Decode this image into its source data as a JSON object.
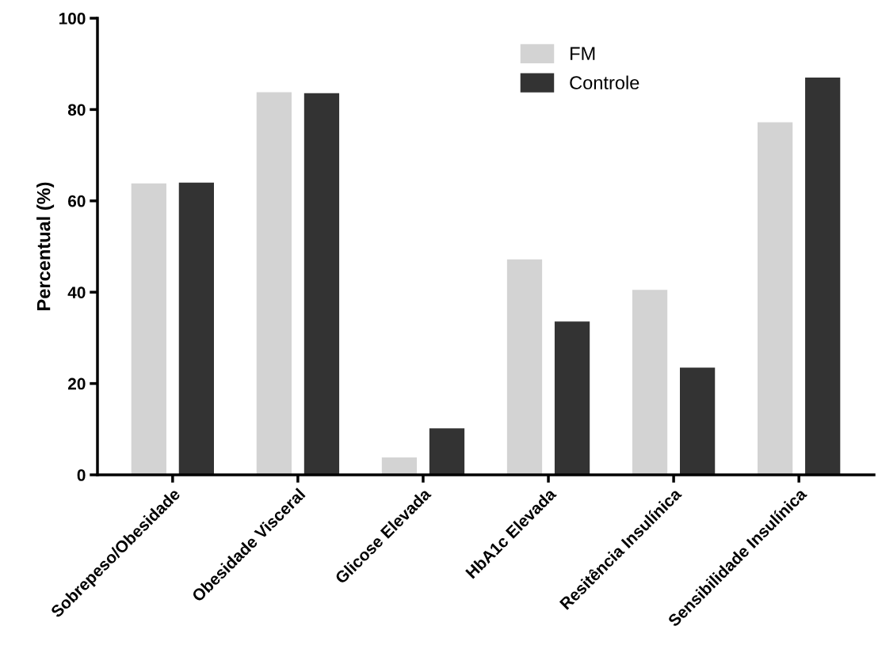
{
  "chart_data": {
    "type": "bar",
    "ylabel": "Percentual (%)",
    "categories": [
      "Sobrepeso/Obesidade",
      "Obesidade Visceral",
      "Glicose Elevada",
      "HbA1c Elevada",
      "Resitência Insulínica",
      "Sensibilidade Insulínica"
    ],
    "series": [
      {
        "name": "FM",
        "color": "#d3d3d3",
        "values": [
          63.8,
          83.8,
          3.8,
          47.2,
          40.5,
          77.2
        ]
      },
      {
        "name": "Controle",
        "color": "#333333",
        "values": [
          64.0,
          83.6,
          10.2,
          33.6,
          23.5,
          87.0
        ]
      }
    ],
    "ylim": [
      0,
      100
    ],
    "yticks": [
      0,
      20,
      40,
      60,
      80,
      100
    ],
    "grid": false,
    "legend": "top right"
  }
}
